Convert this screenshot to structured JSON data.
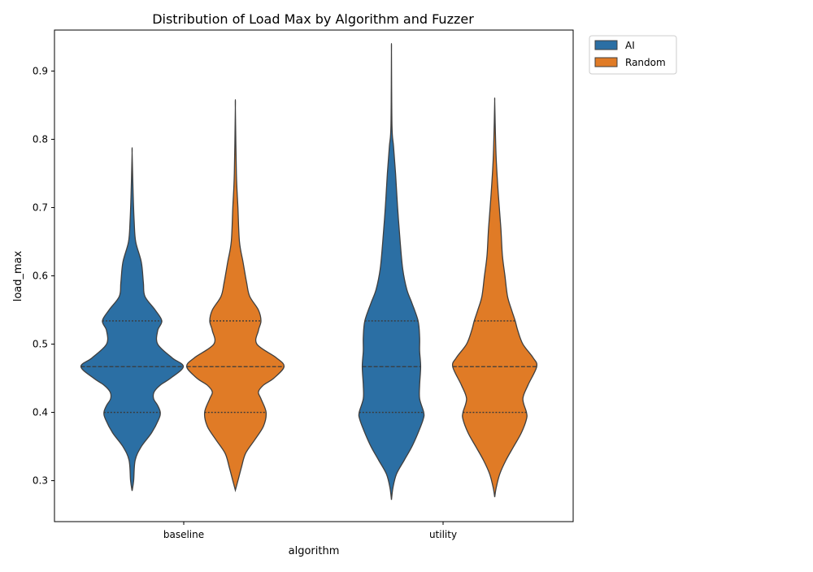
{
  "chart_data": {
    "type": "violin",
    "title": "Distribution of Load Max by Algorithm and Fuzzer",
    "xlabel": "algorithm",
    "ylabel": "load_max",
    "categories": [
      "baseline",
      "utility"
    ],
    "ylim": [
      0.24,
      0.96
    ],
    "yticks": [
      0.3,
      0.4,
      0.5,
      0.6,
      0.7,
      0.8,
      0.9
    ],
    "ytick_labels": [
      "0.3",
      "0.4",
      "0.5",
      "0.6",
      "0.7",
      "0.8",
      "0.9"
    ],
    "grid": false,
    "legend_position": "upper-right-outside",
    "inner": "quartile",
    "series": [
      {
        "name": "AI",
        "color": "#2b6fa4",
        "violins": [
          {
            "category": "baseline",
            "min": 0.285,
            "max": 0.78,
            "q1": 0.4,
            "median": 0.467,
            "q3": 0.534,
            "density": [
              [
                0.285,
                0.0
              ],
              [
                0.3,
                0.03
              ],
              [
                0.33,
                0.06
              ],
              [
                0.35,
                0.18
              ],
              [
                0.37,
                0.38
              ],
              [
                0.39,
                0.52
              ],
              [
                0.4,
                0.55
              ],
              [
                0.41,
                0.5
              ],
              [
                0.42,
                0.42
              ],
              [
                0.43,
                0.43
              ],
              [
                0.44,
                0.55
              ],
              [
                0.45,
                0.75
              ],
              [
                0.467,
                1.0
              ],
              [
                0.48,
                0.78
              ],
              [
                0.5,
                0.5
              ],
              [
                0.52,
                0.5
              ],
              [
                0.534,
                0.58
              ],
              [
                0.55,
                0.45
              ],
              [
                0.57,
                0.25
              ],
              [
                0.59,
                0.22
              ],
              [
                0.62,
                0.18
              ],
              [
                0.65,
                0.07
              ],
              [
                0.68,
                0.04
              ],
              [
                0.72,
                0.02
              ],
              [
                0.78,
                0.0
              ]
            ]
          },
          {
            "category": "utility",
            "min": 0.272,
            "max": 0.927,
            "q1": 0.4,
            "median": 0.467,
            "q3": 0.534,
            "density": [
              [
                0.272,
                0.0
              ],
              [
                0.29,
                0.03
              ],
              [
                0.31,
                0.1
              ],
              [
                0.33,
                0.25
              ],
              [
                0.35,
                0.4
              ],
              [
                0.37,
                0.52
              ],
              [
                0.39,
                0.62
              ],
              [
                0.4,
                0.63
              ],
              [
                0.42,
                0.55
              ],
              [
                0.44,
                0.55
              ],
              [
                0.467,
                0.57
              ],
              [
                0.49,
                0.55
              ],
              [
                0.51,
                0.55
              ],
              [
                0.534,
                0.52
              ],
              [
                0.56,
                0.4
              ],
              [
                0.58,
                0.3
              ],
              [
                0.61,
                0.22
              ],
              [
                0.65,
                0.17
              ],
              [
                0.7,
                0.12
              ],
              [
                0.75,
                0.08
              ],
              [
                0.79,
                0.04
              ],
              [
                0.82,
                0.01
              ],
              [
                0.927,
                0.0
              ]
            ]
          }
        ]
      },
      {
        "name": "Random",
        "color": "#e07b26",
        "violins": [
          {
            "category": "baseline",
            "min": 0.286,
            "max": 0.846,
            "q1": 0.4,
            "median": 0.467,
            "q3": 0.534,
            "density": [
              [
                0.286,
                0.0
              ],
              [
                0.3,
                0.05
              ],
              [
                0.32,
                0.12
              ],
              [
                0.34,
                0.2
              ],
              [
                0.36,
                0.38
              ],
              [
                0.38,
                0.55
              ],
              [
                0.4,
                0.6
              ],
              [
                0.42,
                0.5
              ],
              [
                0.43,
                0.45
              ],
              [
                0.44,
                0.55
              ],
              [
                0.45,
                0.75
              ],
              [
                0.467,
                0.95
              ],
              [
                0.48,
                0.8
              ],
              [
                0.5,
                0.42
              ],
              [
                0.52,
                0.45
              ],
              [
                0.534,
                0.5
              ],
              [
                0.55,
                0.45
              ],
              [
                0.57,
                0.28
              ],
              [
                0.59,
                0.22
              ],
              [
                0.62,
                0.15
              ],
              [
                0.65,
                0.08
              ],
              [
                0.7,
                0.05
              ],
              [
                0.75,
                0.02
              ],
              [
                0.846,
                0.0
              ]
            ]
          },
          {
            "category": "utility",
            "min": 0.276,
            "max": 0.856,
            "q1": 0.4,
            "median": 0.467,
            "q3": 0.534,
            "density": [
              [
                0.276,
                0.0
              ],
              [
                0.29,
                0.03
              ],
              [
                0.31,
                0.1
              ],
              [
                0.33,
                0.22
              ],
              [
                0.35,
                0.37
              ],
              [
                0.37,
                0.52
              ],
              [
                0.39,
                0.62
              ],
              [
                0.4,
                0.62
              ],
              [
                0.42,
                0.55
              ],
              [
                0.44,
                0.65
              ],
              [
                0.467,
                0.82
              ],
              [
                0.48,
                0.75
              ],
              [
                0.5,
                0.55
              ],
              [
                0.52,
                0.45
              ],
              [
                0.534,
                0.4
              ],
              [
                0.55,
                0.33
              ],
              [
                0.57,
                0.25
              ],
              [
                0.6,
                0.2
              ],
              [
                0.63,
                0.15
              ],
              [
                0.67,
                0.12
              ],
              [
                0.72,
                0.07
              ],
              [
                0.77,
                0.03
              ],
              [
                0.82,
                0.01
              ],
              [
                0.856,
                0.0
              ]
            ]
          }
        ]
      }
    ]
  }
}
